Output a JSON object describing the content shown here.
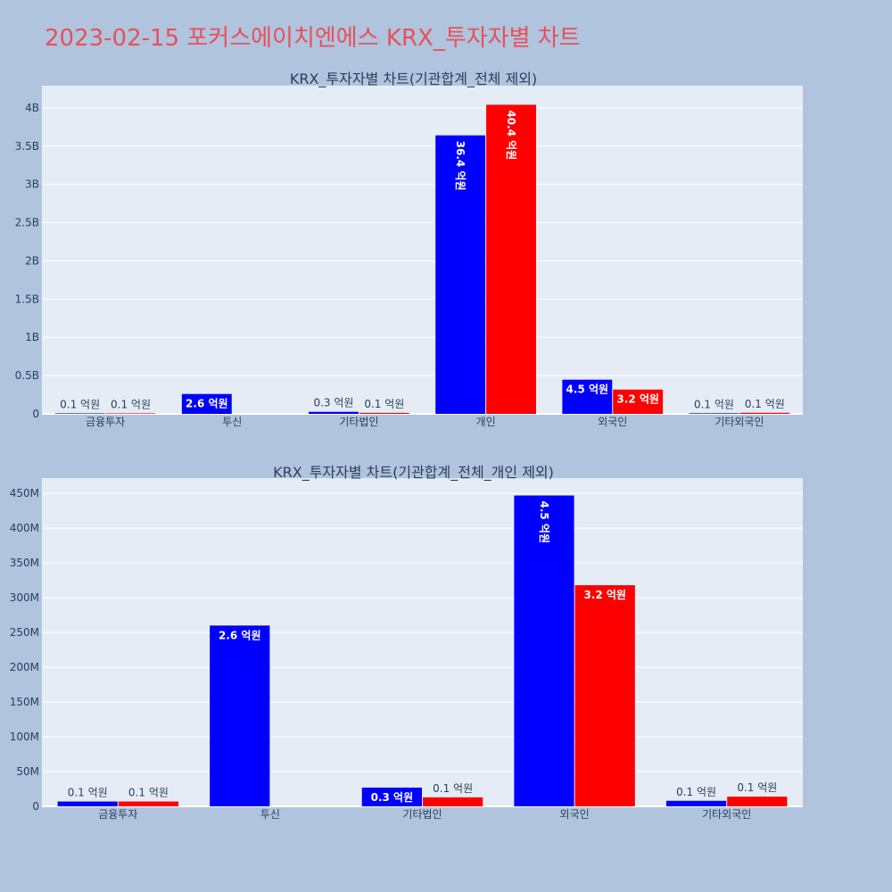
{
  "page": {
    "title": "2023-02-15 포커스에이치엔에스 KRX_투자자별 차트"
  },
  "colors": {
    "background": "#b0c4de",
    "plot_bg": "#e5ecf6",
    "grid": "#ffffff",
    "title": "#e8505b",
    "series_a": "#0000ff",
    "series_b": "#ff0000"
  },
  "chart_data": [
    {
      "type": "bar",
      "title": "KRX_투자자별 차트(기관합계_전체 제외)",
      "categories": [
        "금융투자",
        "투신",
        "기타법인",
        "개인",
        "외국인",
        "기타외국인"
      ],
      "yticks": [
        {
          "v": 0,
          "t": "0"
        },
        {
          "v": 500000000,
          "t": "0.5B"
        },
        {
          "v": 1000000000,
          "t": "1B"
        },
        {
          "v": 1500000000,
          "t": "1.5B"
        },
        {
          "v": 2000000000,
          "t": "2B"
        },
        {
          "v": 2500000000,
          "t": "2.5B"
        },
        {
          "v": 3000000000,
          "t": "3B"
        },
        {
          "v": 3500000000,
          "t": "3.5B"
        },
        {
          "v": 4000000000,
          "t": "4B"
        }
      ],
      "ylim": [
        0,
        4290000000
      ],
      "grid": true,
      "series": [
        {
          "color": "#0000ff",
          "values": [
            7000000,
            260000000,
            27000000,
            3640000000,
            447000000,
            8000000
          ],
          "labels": [
            "0.1 억원",
            "2.6 억원",
            "0.3 억원",
            "36.4 억원",
            "4.5 억원",
            "0.1 억원"
          ]
        },
        {
          "color": "#ff0000",
          "values": [
            7000000,
            0,
            13000000,
            4040000000,
            318000000,
            14000000
          ],
          "labels": [
            "0.1 억원",
            "",
            "0.1 억원",
            "40.4 억원",
            "3.2 억원",
            "0.1 억원"
          ]
        }
      ]
    },
    {
      "type": "bar",
      "title": "KRX_투자자별 차트(기관합계_전체_개인 제외)",
      "categories": [
        "금융투자",
        "투신",
        "기타법인",
        "외국인",
        "기타외국인"
      ],
      "yticks": [
        {
          "v": 0,
          "t": "0"
        },
        {
          "v": 50000000,
          "t": "50M"
        },
        {
          "v": 100000000,
          "t": "100M"
        },
        {
          "v": 150000000,
          "t": "150M"
        },
        {
          "v": 200000000,
          "t": "200M"
        },
        {
          "v": 250000000,
          "t": "250M"
        },
        {
          "v": 300000000,
          "t": "300M"
        },
        {
          "v": 350000000,
          "t": "350M"
        },
        {
          "v": 400000000,
          "t": "400M"
        },
        {
          "v": 450000000,
          "t": "450M"
        }
      ],
      "ylim": [
        0,
        472000000
      ],
      "grid": true,
      "series": [
        {
          "color": "#0000ff",
          "values": [
            7000000,
            260000000,
            27000000,
            447000000,
            8000000
          ],
          "labels": [
            "0.1 억원",
            "2.6 억원",
            "0.3 억원",
            "4.5 억원",
            "0.1 억원"
          ]
        },
        {
          "color": "#ff0000",
          "values": [
            7000000,
            0,
            13000000,
            318000000,
            14000000
          ],
          "labels": [
            "0.1 억원",
            "",
            "0.1 억원",
            "3.2 억원",
            "0.1 억원"
          ]
        }
      ]
    }
  ]
}
